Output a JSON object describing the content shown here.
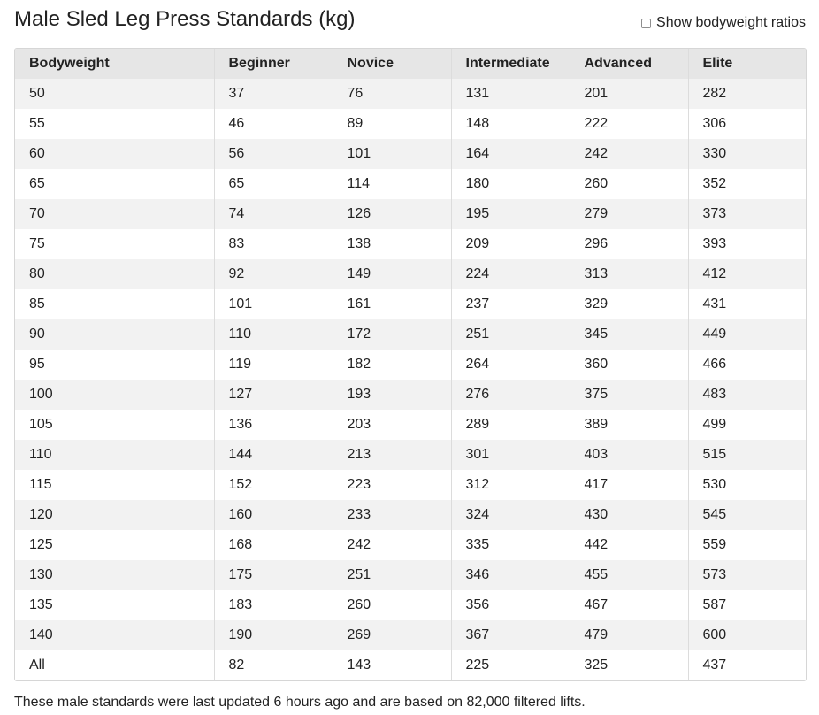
{
  "title": "Male Sled Leg Press Standards (kg)",
  "ratio_toggle": {
    "label": "Show bodyweight ratios",
    "checked": false
  },
  "table": {
    "headers": [
      "Bodyweight",
      "Beginner",
      "Novice",
      "Intermediate",
      "Advanced",
      "Elite"
    ],
    "rows": [
      [
        "50",
        "37",
        "76",
        "131",
        "201",
        "282"
      ],
      [
        "55",
        "46",
        "89",
        "148",
        "222",
        "306"
      ],
      [
        "60",
        "56",
        "101",
        "164",
        "242",
        "330"
      ],
      [
        "65",
        "65",
        "114",
        "180",
        "260",
        "352"
      ],
      [
        "70",
        "74",
        "126",
        "195",
        "279",
        "373"
      ],
      [
        "75",
        "83",
        "138",
        "209",
        "296",
        "393"
      ],
      [
        "80",
        "92",
        "149",
        "224",
        "313",
        "412"
      ],
      [
        "85",
        "101",
        "161",
        "237",
        "329",
        "431"
      ],
      [
        "90",
        "110",
        "172",
        "251",
        "345",
        "449"
      ],
      [
        "95",
        "119",
        "182",
        "264",
        "360",
        "466"
      ],
      [
        "100",
        "127",
        "193",
        "276",
        "375",
        "483"
      ],
      [
        "105",
        "136",
        "203",
        "289",
        "389",
        "499"
      ],
      [
        "110",
        "144",
        "213",
        "301",
        "403",
        "515"
      ],
      [
        "115",
        "152",
        "223",
        "312",
        "417",
        "530"
      ],
      [
        "120",
        "160",
        "233",
        "324",
        "430",
        "545"
      ],
      [
        "125",
        "168",
        "242",
        "335",
        "442",
        "559"
      ],
      [
        "130",
        "175",
        "251",
        "346",
        "455",
        "573"
      ],
      [
        "135",
        "183",
        "260",
        "356",
        "467",
        "587"
      ],
      [
        "140",
        "190",
        "269",
        "367",
        "479",
        "600"
      ],
      [
        "All",
        "82",
        "143",
        "225",
        "325",
        "437"
      ]
    ]
  },
  "footnote": "These male standards were last updated 6 hours ago and are based on 82,000 filtered lifts."
}
